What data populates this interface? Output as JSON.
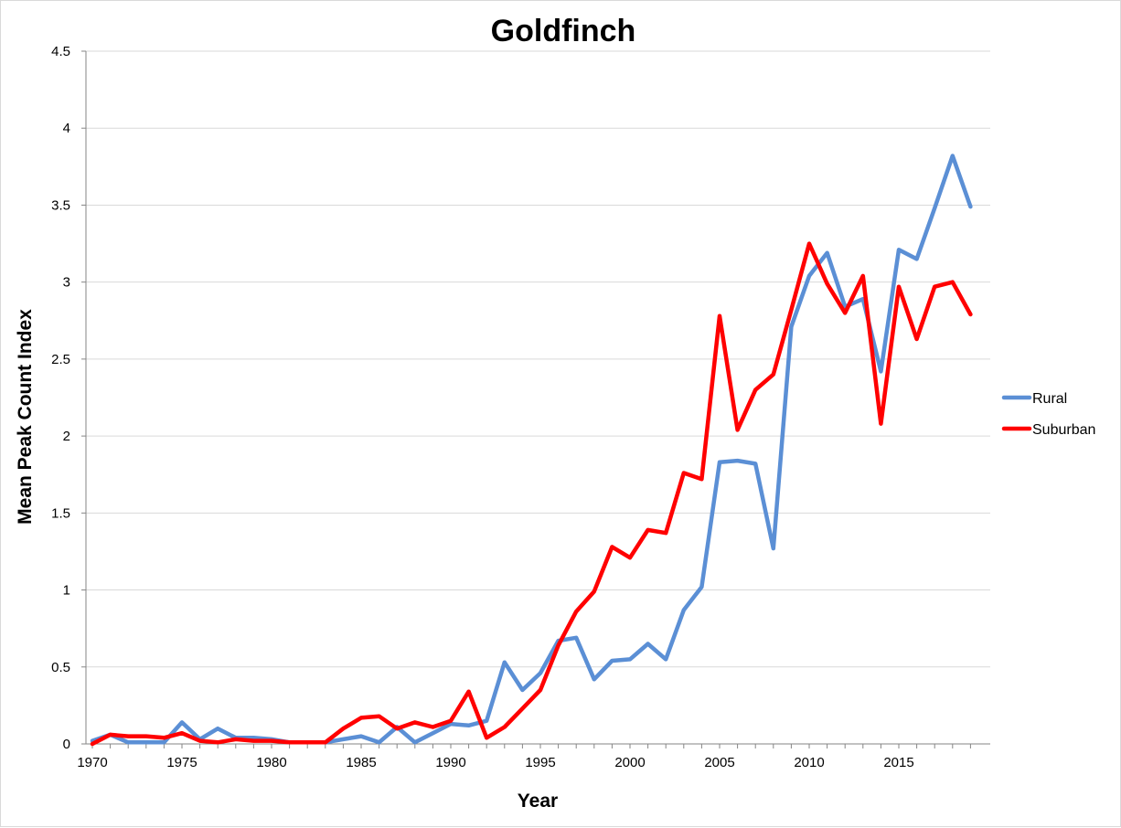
{
  "chart_data": {
    "type": "line",
    "title": "Goldfinch",
    "xlabel": "Year",
    "ylabel": "Mean Peak Count Index",
    "xlim": [
      1970,
      2019
    ],
    "ylim": [
      0,
      4.5
    ],
    "x_ticks": [
      "1970",
      "1975",
      "1980",
      "1985",
      "1990",
      "1995",
      "2000",
      "2005",
      "2010",
      "2015"
    ],
    "y_ticks": [
      "0",
      "0.5",
      "1",
      "1.5",
      "2",
      "2.5",
      "3",
      "3.5",
      "4",
      "4.5"
    ],
    "grid": "horizontal",
    "legend_position": "right",
    "x": [
      1970,
      1971,
      1972,
      1973,
      1974,
      1975,
      1976,
      1977,
      1978,
      1979,
      1980,
      1981,
      1982,
      1983,
      1984,
      1985,
      1986,
      1987,
      1988,
      1989,
      1990,
      1991,
      1992,
      1993,
      1994,
      1995,
      1996,
      1997,
      1998,
      1999,
      2000,
      2001,
      2002,
      2003,
      2004,
      2005,
      2006,
      2007,
      2008,
      2009,
      2010,
      2011,
      2012,
      2013,
      2014,
      2015,
      2016,
      2017,
      2018,
      2019
    ],
    "series": [
      {
        "name": "Rural",
        "color": "#5b8fd5",
        "values": [
          0.02,
          0.06,
          0.01,
          0.01,
          0.01,
          0.14,
          0.03,
          0.1,
          0.04,
          0.04,
          0.03,
          0.01,
          0.01,
          0.01,
          0.03,
          0.05,
          0.01,
          0.11,
          0.01,
          0.07,
          0.13,
          0.12,
          0.15,
          0.53,
          0.35,
          0.46,
          0.67,
          0.69,
          0.42,
          0.54,
          0.55,
          0.65,
          0.55,
          0.87,
          1.02,
          1.83,
          1.84,
          1.82,
          1.27,
          2.71,
          3.04,
          3.19,
          2.84,
          2.89,
          2.42,
          3.21,
          3.15,
          3.48,
          3.82,
          3.49
        ]
      },
      {
        "name": "Suburban",
        "color": "#ff0000",
        "values": [
          0.0,
          0.06,
          0.05,
          0.05,
          0.04,
          0.07,
          0.02,
          0.01,
          0.03,
          0.02,
          0.02,
          0.01,
          0.01,
          0.01,
          0.1,
          0.17,
          0.18,
          0.1,
          0.14,
          0.11,
          0.15,
          0.34,
          0.04,
          0.11,
          0.23,
          0.35,
          0.64,
          0.86,
          0.99,
          1.28,
          1.21,
          1.39,
          1.37,
          1.76,
          1.72,
          2.78,
          2.04,
          2.3,
          2.4,
          2.82,
          3.25,
          2.99,
          2.8,
          3.04,
          2.08,
          2.97,
          2.63,
          2.97,
          3.0,
          2.79
        ]
      }
    ]
  }
}
